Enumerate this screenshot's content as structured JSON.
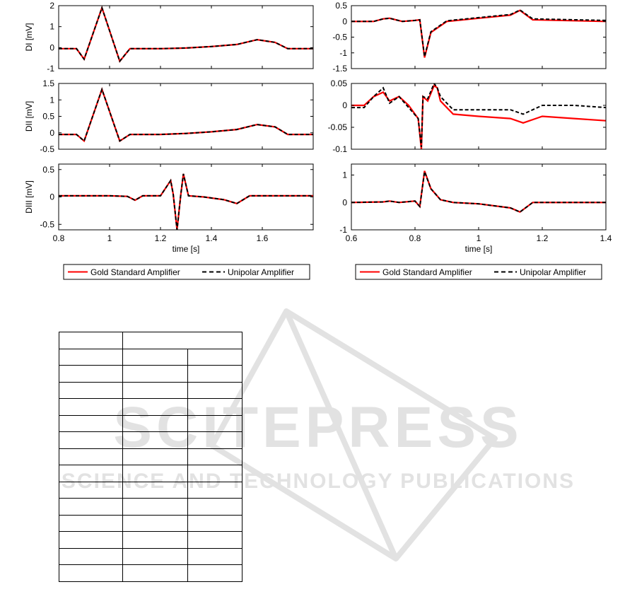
{
  "chart_data": [
    {
      "type": "line",
      "panel": "left-top",
      "ylabel": "DI [mV]",
      "xlim": [
        0.8,
        1.8
      ],
      "ylim": [
        -1,
        2
      ],
      "yticks": [
        "2",
        "1",
        "0",
        "-1"
      ],
      "yticks_values": [
        2,
        1,
        0,
        -1
      ],
      "series": [
        {
          "name": "Gold Standard Amplifier",
          "color": "#ff0000",
          "x": [
            0.8,
            0.87,
            0.9,
            0.97,
            1.04,
            1.08,
            1.2,
            1.3,
            1.4,
            1.5,
            1.58,
            1.65,
            1.7,
            1.8
          ],
          "y": [
            -0.05,
            -0.05,
            -0.55,
            1.9,
            -0.65,
            -0.05,
            -0.05,
            -0.02,
            0.05,
            0.15,
            0.38,
            0.25,
            -0.05,
            -0.05
          ]
        },
        {
          "name": "Unipolar Amplifier",
          "color": "#000000",
          "x": [
            0.8,
            0.87,
            0.9,
            0.97,
            1.04,
            1.08,
            1.2,
            1.3,
            1.4,
            1.5,
            1.58,
            1.65,
            1.7,
            1.8
          ],
          "y": [
            -0.05,
            -0.05,
            -0.55,
            1.9,
            -0.65,
            -0.05,
            -0.05,
            -0.02,
            0.05,
            0.15,
            0.38,
            0.25,
            -0.05,
            -0.05
          ]
        }
      ]
    },
    {
      "type": "line",
      "panel": "left-middle",
      "ylabel": "DII [mV]",
      "xlim": [
        0.8,
        1.8
      ],
      "ylim": [
        -0.5,
        1.5
      ],
      "yticks": [
        "1.5",
        "1",
        "0.5",
        "0",
        "-0.5"
      ],
      "yticks_values": [
        1.5,
        1,
        0.5,
        0,
        -0.5
      ],
      "series": [
        {
          "name": "Gold Standard Amplifier",
          "color": "#ff0000",
          "x": [
            0.8,
            0.87,
            0.9,
            0.97,
            1.04,
            1.08,
            1.2,
            1.3,
            1.4,
            1.5,
            1.58,
            1.65,
            1.7,
            1.8
          ],
          "y": [
            -0.05,
            -0.05,
            -0.25,
            1.32,
            -0.25,
            -0.05,
            -0.05,
            -0.02,
            0.03,
            0.1,
            0.25,
            0.18,
            -0.05,
            -0.05
          ]
        },
        {
          "name": "Unipolar Amplifier",
          "color": "#000000",
          "x": [
            0.8,
            0.87,
            0.9,
            0.97,
            1.04,
            1.08,
            1.2,
            1.3,
            1.4,
            1.5,
            1.58,
            1.65,
            1.7,
            1.8
          ],
          "y": [
            -0.05,
            -0.05,
            -0.25,
            1.32,
            -0.25,
            -0.05,
            -0.05,
            -0.02,
            0.03,
            0.1,
            0.25,
            0.18,
            -0.05,
            -0.05
          ]
        }
      ]
    },
    {
      "type": "line",
      "panel": "left-bottom",
      "ylabel": "DIII [mV]",
      "xlabel": "time [s]",
      "xlim": [
        0.8,
        1.8
      ],
      "ylim": [
        -0.6,
        0.6
      ],
      "yticks": [
        "0.5",
        "0",
        "-0.5"
      ],
      "yticks_values": [
        0.5,
        0,
        -0.5
      ],
      "xticks": [
        "0.8",
        "1",
        "1.2",
        "1.4",
        "1.6"
      ],
      "xticks_values": [
        0.8,
        1,
        1.2,
        1.4,
        1.6
      ],
      "series": [
        {
          "name": "Gold Standard Amplifier",
          "color": "#ff0000",
          "x": [
            0.8,
            1.0,
            1.07,
            1.1,
            1.13,
            1.2,
            1.24,
            1.25,
            1.265,
            1.28,
            1.29,
            1.31,
            1.37,
            1.45,
            1.5,
            1.55,
            1.8
          ],
          "y": [
            0.02,
            0.02,
            0.01,
            -0.06,
            0.02,
            0.02,
            0.3,
            0.05,
            -0.6,
            0.05,
            0.42,
            0.02,
            0.0,
            -0.05,
            -0.12,
            0.02,
            0.02
          ]
        },
        {
          "name": "Unipolar Amplifier",
          "color": "#000000",
          "x": [
            0.8,
            1.0,
            1.07,
            1.1,
            1.13,
            1.2,
            1.24,
            1.25,
            1.265,
            1.28,
            1.29,
            1.31,
            1.37,
            1.45,
            1.5,
            1.55,
            1.8
          ],
          "y": [
            0.02,
            0.02,
            0.01,
            -0.06,
            0.02,
            0.02,
            0.3,
            0.05,
            -0.6,
            0.05,
            0.42,
            0.02,
            0.0,
            -0.05,
            -0.12,
            0.02,
            0.02
          ]
        }
      ]
    },
    {
      "type": "line",
      "panel": "right-top",
      "xlim": [
        0.6,
        1.4
      ],
      "ylim": [
        -1.5,
        0.5
      ],
      "yticks": [
        "0.5",
        "0",
        "-0.5",
        "-1",
        "-1.5"
      ],
      "yticks_values": [
        0.5,
        0,
        -0.5,
        -1,
        -1.5
      ],
      "series": [
        {
          "name": "Gold Standard Amplifier",
          "color": "#ff0000",
          "x": [
            0.6,
            0.67,
            0.7,
            0.72,
            0.76,
            0.8,
            0.815,
            0.83,
            0.85,
            0.9,
            1.0,
            1.1,
            1.13,
            1.17,
            1.4
          ],
          "y": [
            0.0,
            0.0,
            0.08,
            0.1,
            0.0,
            0.03,
            0.05,
            -1.15,
            -0.35,
            0.0,
            0.1,
            0.2,
            0.35,
            0.05,
            0.0
          ]
        },
        {
          "name": "Unipolar Amplifier",
          "color": "#000000",
          "x": [
            0.6,
            0.67,
            0.7,
            0.72,
            0.76,
            0.8,
            0.815,
            0.83,
            0.85,
            0.9,
            1.0,
            1.1,
            1.13,
            1.17,
            1.4
          ],
          "y": [
            0.0,
            0.0,
            0.08,
            0.1,
            0.0,
            0.03,
            0.05,
            -1.12,
            -0.33,
            0.02,
            0.12,
            0.22,
            0.36,
            0.08,
            0.03
          ]
        }
      ]
    },
    {
      "type": "line",
      "panel": "right-middle",
      "xlim": [
        0.6,
        1.4
      ],
      "ylim": [
        -0.1,
        0.05
      ],
      "yticks": [
        "0.05",
        "0",
        "-0.05",
        "-0.1"
      ],
      "yticks_values": [
        0.05,
        0,
        -0.05,
        -0.1
      ],
      "series": [
        {
          "name": "Gold Standard Amplifier",
          "color": "#ff0000",
          "x": [
            0.6,
            0.64,
            0.67,
            0.7,
            0.72,
            0.75,
            0.78,
            0.81,
            0.82,
            0.825,
            0.84,
            0.86,
            0.87,
            0.88,
            0.92,
            1.0,
            1.1,
            1.14,
            1.2,
            1.3,
            1.4
          ],
          "y": [
            0.0,
            0.0,
            0.02,
            0.03,
            0.01,
            0.02,
            0.0,
            -0.03,
            -0.1,
            0.02,
            0.01,
            0.045,
            0.04,
            0.01,
            -0.02,
            -0.025,
            -0.03,
            -0.04,
            -0.025,
            -0.03,
            -0.035
          ]
        },
        {
          "name": "Unipolar Amplifier",
          "color": "#000000",
          "x": [
            0.6,
            0.64,
            0.67,
            0.7,
            0.72,
            0.75,
            0.78,
            0.81,
            0.82,
            0.825,
            0.84,
            0.86,
            0.87,
            0.88,
            0.92,
            1.0,
            1.1,
            1.14,
            1.2,
            1.3,
            1.4
          ],
          "y": [
            -0.005,
            -0.005,
            0.02,
            0.04,
            0.005,
            0.02,
            -0.005,
            -0.03,
            -0.095,
            0.02,
            0.015,
            0.05,
            0.04,
            0.02,
            -0.01,
            -0.01,
            -0.01,
            -0.02,
            0.0,
            0.0,
            -0.005
          ]
        }
      ]
    },
    {
      "type": "line",
      "panel": "right-bottom",
      "xlabel": "time [s]",
      "xlim": [
        0.6,
        1.4
      ],
      "ylim": [
        -1,
        1.4
      ],
      "yticks": [
        "1",
        "0",
        "-1"
      ],
      "yticks_values": [
        1,
        0,
        -1
      ],
      "xticks": [
        "0.6",
        "0.8",
        "1",
        "1.2",
        "1.4"
      ],
      "xticks_values": [
        0.6,
        0.8,
        1,
        1.2,
        1.4
      ],
      "series": [
        {
          "name": "Gold Standard Amplifier",
          "color": "#ff0000",
          "x": [
            0.6,
            0.7,
            0.72,
            0.75,
            0.8,
            0.815,
            0.83,
            0.85,
            0.88,
            0.92,
            1.0,
            1.1,
            1.13,
            1.17,
            1.4
          ],
          "y": [
            0.0,
            0.02,
            0.05,
            0.0,
            0.05,
            -0.15,
            1.15,
            0.5,
            0.1,
            0.0,
            -0.05,
            -0.2,
            -0.35,
            0.0,
            0.0
          ]
        },
        {
          "name": "Unipolar Amplifier",
          "color": "#000000",
          "x": [
            0.6,
            0.7,
            0.72,
            0.75,
            0.8,
            0.815,
            0.83,
            0.85,
            0.88,
            0.92,
            1.0,
            1.1,
            1.13,
            1.17,
            1.4
          ],
          "y": [
            0.0,
            0.02,
            0.05,
            0.0,
            0.05,
            -0.15,
            1.12,
            0.5,
            0.1,
            0.0,
            -0.05,
            -0.2,
            -0.35,
            0.0,
            0.0
          ]
        }
      ]
    }
  ],
  "legends": {
    "left": {
      "gold": "Gold Standard Amplifier",
      "unipolar": "Unipolar Amplifier"
    },
    "right": {
      "gold": "Gold Standard Amplifier",
      "unipolar": "Unipolar Amplifier"
    }
  },
  "watermark": {
    "main": "SCITEPRESS",
    "sub": "SCIENCE AND TECHNOLOGY PUBLICATIONS"
  },
  "table": {
    "rows": 15,
    "cols": 3
  }
}
